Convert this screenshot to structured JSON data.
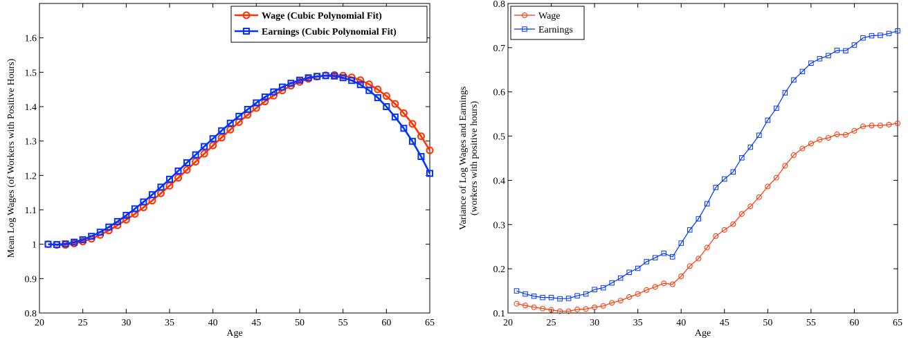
{
  "chart_data": [
    {
      "type": "line",
      "xlabel": "Age",
      "ylabel": "Mean Log Wages (of Workers with Positive Hours)",
      "xlim": [
        20,
        65
      ],
      "ylim": [
        0.8,
        1.7
      ],
      "xticks": [
        "20",
        "25",
        "30",
        "35",
        "40",
        "45",
        "50",
        "55",
        "60",
        "65"
      ],
      "yticks": [
        "0.8",
        "0.9",
        "1",
        "1.1",
        "1.2",
        "1.3",
        "1.4",
        "1.5",
        "1.6"
      ],
      "legend_position": "top-right",
      "x": [
        21,
        22,
        23,
        24,
        25,
        26,
        27,
        28,
        29,
        30,
        31,
        32,
        33,
        34,
        35,
        36,
        37,
        38,
        39,
        40,
        41,
        42,
        43,
        44,
        45,
        46,
        47,
        48,
        49,
        50,
        51,
        52,
        53,
        54,
        55,
        56,
        57,
        58,
        59,
        60,
        61,
        62,
        63,
        64,
        65
      ],
      "series": [
        {
          "name": "Wage (Cubic Polynomial Fit)",
          "color": "#ff3300",
          "marker": "circle",
          "values": [
            1.0,
            0.998,
            0.998,
            1.002,
            1.008,
            1.016,
            1.027,
            1.04,
            1.055,
            1.071,
            1.088,
            1.107,
            1.127,
            1.148,
            1.17,
            1.193,
            1.216,
            1.24,
            1.263,
            1.287,
            1.31,
            1.333,
            1.355,
            1.376,
            1.396,
            1.415,
            1.432,
            1.447,
            1.461,
            1.472,
            1.481,
            1.487,
            1.491,
            1.492,
            1.49,
            1.485,
            1.477,
            1.465,
            1.45,
            1.431,
            1.408,
            1.381,
            1.35,
            1.314,
            1.273
          ]
        },
        {
          "name": "Earnings (Cubic Polynomial Fit)",
          "color": "#0033ff",
          "marker": "square",
          "values": [
            1.0,
            0.999,
            1.001,
            1.006,
            1.013,
            1.023,
            1.035,
            1.05,
            1.066,
            1.084,
            1.103,
            1.123,
            1.144,
            1.166,
            1.189,
            1.213,
            1.237,
            1.26,
            1.284,
            1.307,
            1.33,
            1.352,
            1.372,
            1.392,
            1.411,
            1.428,
            1.443,
            1.457,
            1.468,
            1.477,
            1.484,
            1.488,
            1.49,
            1.489,
            1.484,
            1.476,
            1.464,
            1.447,
            1.426,
            1.4,
            1.37,
            1.337,
            1.299,
            1.255,
            1.206
          ]
        }
      ]
    },
    {
      "type": "line",
      "xlabel": "Age",
      "ylabel_line1": "Variance of Log Wages and Earnings",
      "ylabel_line2": "(workers with positive hours)",
      "xlim": [
        20,
        65
      ],
      "ylim": [
        0.1,
        0.8
      ],
      "xticks": [
        "20",
        "25",
        "30",
        "35",
        "40",
        "45",
        "50",
        "55",
        "60",
        "65"
      ],
      "yticks": [
        "0.1",
        "0.2",
        "0.3",
        "0.4",
        "0.5",
        "0.6",
        "0.7",
        "0.8"
      ],
      "legend_position": "top-left",
      "x": [
        21,
        22,
        23,
        24,
        25,
        26,
        27,
        28,
        29,
        30,
        31,
        32,
        33,
        34,
        35,
        36,
        37,
        38,
        39,
        40,
        41,
        42,
        43,
        44,
        45,
        46,
        47,
        48,
        49,
        50,
        51,
        52,
        53,
        54,
        55,
        56,
        57,
        58,
        59,
        60,
        61,
        62,
        63,
        64,
        65
      ],
      "series": [
        {
          "name": "Wage",
          "color": "#ff3300",
          "marker": "circle",
          "values": [
            0.121,
            0.117,
            0.113,
            0.11,
            0.107,
            0.104,
            0.104,
            0.108,
            0.109,
            0.113,
            0.116,
            0.123,
            0.128,
            0.136,
            0.143,
            0.152,
            0.159,
            0.167,
            0.165,
            0.183,
            0.206,
            0.223,
            0.248,
            0.274,
            0.288,
            0.301,
            0.324,
            0.341,
            0.362,
            0.386,
            0.406,
            0.433,
            0.457,
            0.472,
            0.483,
            0.492,
            0.496,
            0.504,
            0.503,
            0.512,
            0.522,
            0.524,
            0.524,
            0.526,
            0.529
          ]
        },
        {
          "name": "Earnings",
          "color": "#0033ff",
          "marker": "square",
          "values": [
            0.15,
            0.143,
            0.138,
            0.135,
            0.135,
            0.132,
            0.133,
            0.139,
            0.143,
            0.153,
            0.157,
            0.168,
            0.179,
            0.192,
            0.201,
            0.216,
            0.225,
            0.235,
            0.227,
            0.258,
            0.288,
            0.313,
            0.347,
            0.384,
            0.403,
            0.419,
            0.451,
            0.475,
            0.502,
            0.536,
            0.563,
            0.598,
            0.627,
            0.646,
            0.665,
            0.675,
            0.682,
            0.694,
            0.693,
            0.706,
            0.722,
            0.727,
            0.728,
            0.732,
            0.738
          ]
        }
      ]
    }
  ]
}
